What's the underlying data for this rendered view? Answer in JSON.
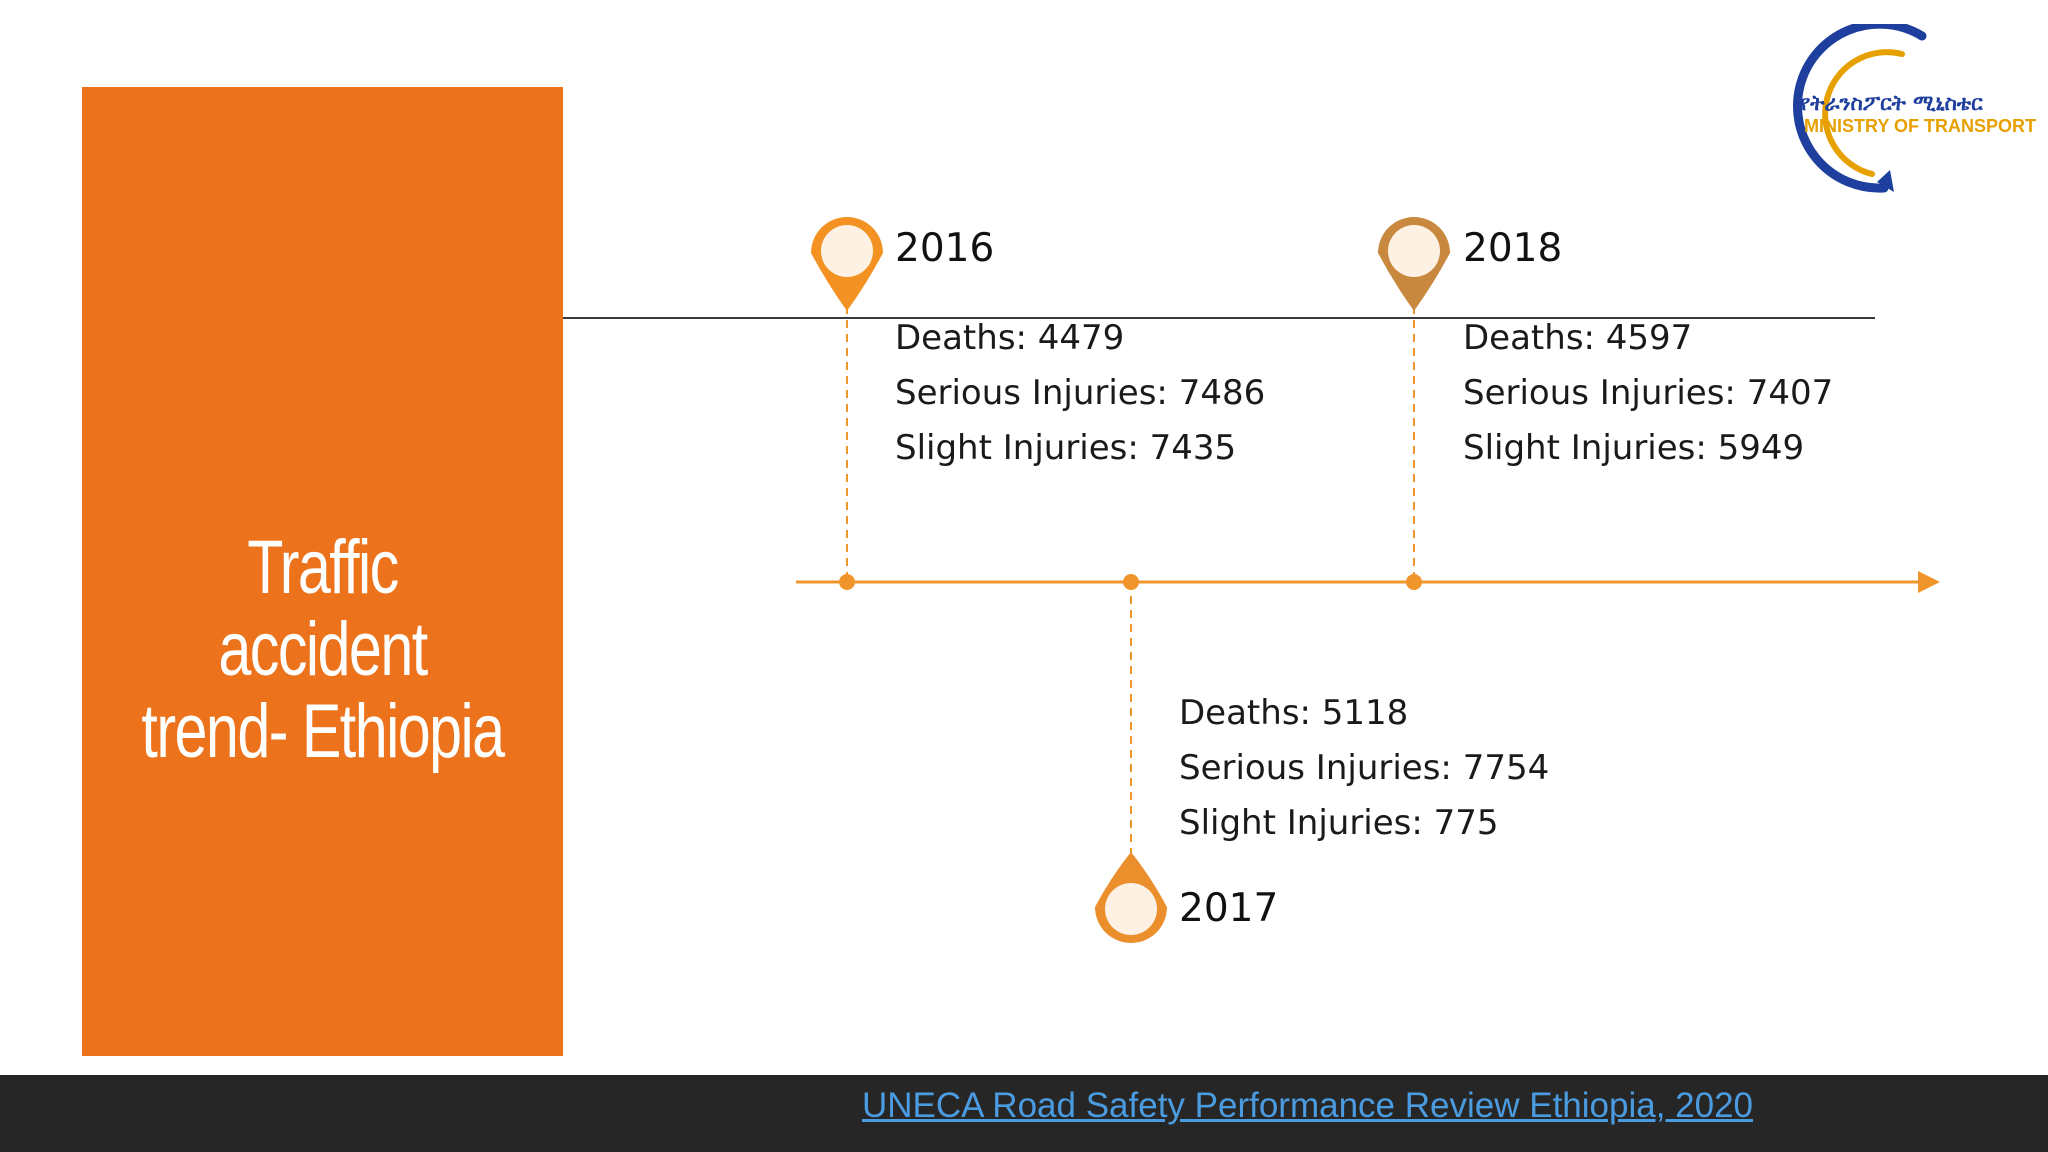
{
  "title": {
    "line1": "Traffic",
    "line2": "accident",
    "line3": "trend- Ethiopia"
  },
  "logo": {
    "amharic_text": "የትራንስፖርት ሚኒስቴር",
    "english_text": "MINISTRY OF TRANSPORT"
  },
  "timeline": {
    "entries": [
      {
        "year": "2016",
        "deaths": "Deaths: 4479",
        "serious": "Serious Injuries: 7486",
        "slight": "Slight Injuries: 7435"
      },
      {
        "year": "2017",
        "deaths": "Deaths: 5118",
        "serious": "Serious Injuries: 7754",
        "slight": "Slight Injuries: 775"
      },
      {
        "year": "2018",
        "deaths": "Deaths: 4597",
        "serious": "Serious Injuries: 7407",
        "slight": "Slight Injuries: 5949"
      }
    ]
  },
  "footer": {
    "source_text": "UNECA Road Safety Performance Review Ethiopia, 2020"
  },
  "colors": {
    "title_panel": "#ec731b",
    "timeline_orange": "#f0952b",
    "marker_2016": "#f39222",
    "marker_2017": "#eb8f2c",
    "marker_2018": "#c8883e",
    "footer_bg": "#262626",
    "link": "#4a9be0",
    "logo_blue": "#1f3f9e",
    "logo_gold": "#e6a000"
  }
}
